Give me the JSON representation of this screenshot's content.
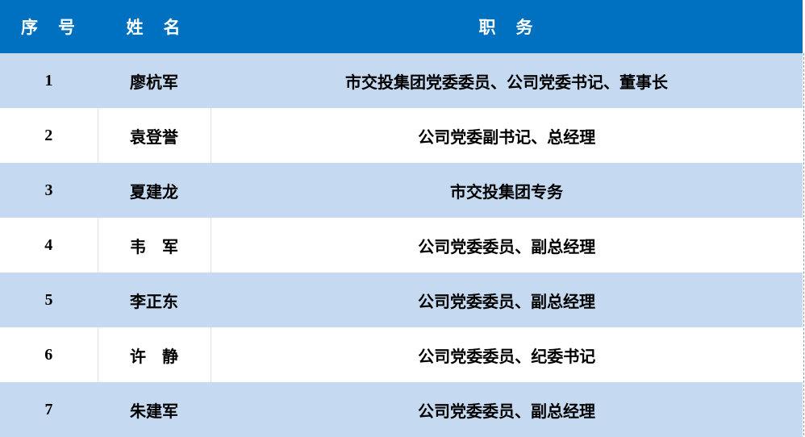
{
  "header": {
    "index": "序　号",
    "name": "姓　名",
    "position": "职　务"
  },
  "colors": {
    "header_bg": "#0070C0",
    "stripe_bg": "#C5D9F1"
  },
  "rows": [
    {
      "index": "1",
      "name": "廖杭军",
      "position": "市交投集团党委委员、公司党委书记、董事长"
    },
    {
      "index": "2",
      "name": "袁登誉",
      "position": "公司党委副书记、总经理"
    },
    {
      "index": "3",
      "name": "夏建龙",
      "position": "市交投集团专务"
    },
    {
      "index": "4",
      "name": "韦　军",
      "position": "公司党委委员、副总经理"
    },
    {
      "index": "5",
      "name": "李正东",
      "position": "公司党委委员、副总经理"
    },
    {
      "index": "6",
      "name": "许　静",
      "position": "公司党委委员、纪委书记"
    },
    {
      "index": "7",
      "name": "朱建军",
      "position": "公司党委委员、副总经理"
    }
  ]
}
